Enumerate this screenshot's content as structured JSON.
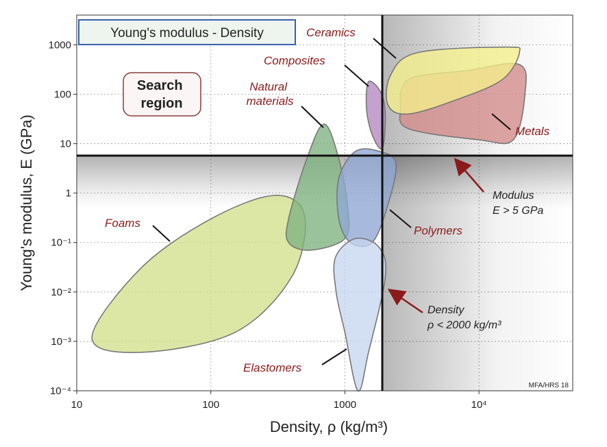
{
  "chart_data": {
    "type": "scatter",
    "title": "Young's modulus - Density",
    "xlabel": "Density, ρ  (kg/m³)",
    "ylabel": "Young's modulus, E  (GPa)",
    "xscale": "log",
    "yscale": "log",
    "xlim": [
      10,
      50000
    ],
    "ylim": [
      0.0001,
      4000
    ],
    "x_ticks": [
      {
        "value": 10,
        "label": "10"
      },
      {
        "value": 100,
        "label": "100"
      },
      {
        "value": 1000,
        "label": "1000"
      },
      {
        "value": 10000,
        "label": "10⁴"
      }
    ],
    "y_ticks": [
      {
        "value": 1000,
        "label": "1000"
      },
      {
        "value": 100,
        "label": "100"
      },
      {
        "value": 10,
        "label": "10"
      },
      {
        "value": 1,
        "label": "1"
      },
      {
        "value": 0.1,
        "label": "10⁻¹"
      },
      {
        "value": 0.01,
        "label": "10⁻²"
      },
      {
        "value": 0.001,
        "label": "10⁻³"
      },
      {
        "value": 0.0001,
        "label": "10⁻⁴"
      }
    ],
    "grid": true,
    "material_classes": [
      {
        "name": "Foams",
        "color": "#d3e08c",
        "pts": [
          [
            13,
            0.0012
          ],
          [
            30,
            0.0006
          ],
          [
            150,
            0.0015
          ],
          [
            400,
            0.02
          ],
          [
            500,
            0.35
          ],
          [
            300,
            0.9
          ],
          [
            100,
            0.3
          ],
          [
            30,
            0.03
          ]
        ]
      },
      {
        "name": "Natural materials",
        "color": "#7fb27f",
        "pts": [
          [
            380,
            0.1
          ],
          [
            550,
            0.07
          ],
          [
            1000,
            0.12
          ],
          [
            1050,
            0.5
          ],
          [
            900,
            5
          ],
          [
            700,
            25
          ],
          [
            520,
            5
          ],
          [
            380,
            0.3
          ]
        ]
      },
      {
        "name": "Polymers",
        "color": "#8ea6d4",
        "pts": [
          [
            900,
            0.3
          ],
          [
            1100,
            0.1
          ],
          [
            1600,
            0.1
          ],
          [
            2100,
            0.6
          ],
          [
            2400,
            4
          ],
          [
            1800,
            7
          ],
          [
            1200,
            7
          ],
          [
            900,
            2
          ]
        ]
      },
      {
        "name": "Elastomers",
        "color": "#c6d6f0",
        "pts": [
          [
            860,
            0.01
          ],
          [
            1000,
            0.0015
          ],
          [
            1250,
            0.0001
          ],
          [
            1500,
            0.0006
          ],
          [
            2000,
            0.02
          ],
          [
            1800,
            0.08
          ],
          [
            1200,
            0.12
          ],
          [
            850,
            0.05
          ]
        ]
      },
      {
        "name": "Composites",
        "color": "#b586c0",
        "pts": [
          [
            1450,
            50
          ],
          [
            1600,
            15
          ],
          [
            1900,
            8
          ],
          [
            2000,
            40
          ],
          [
            1850,
            110
          ],
          [
            1500,
            180
          ]
        ]
      },
      {
        "name": "Metals",
        "color": "#d48a8a",
        "pts": [
          [
            2600,
            50
          ],
          [
            3000,
            20
          ],
          [
            10000,
            12
          ],
          [
            18000,
            12
          ],
          [
            22000,
            100
          ],
          [
            20000,
            400
          ],
          [
            8000,
            300
          ],
          [
            3000,
            200
          ]
        ]
      },
      {
        "name": "Ceramics",
        "color": "#f5f08a",
        "pts": [
          [
            2100,
            60
          ],
          [
            2200,
            250
          ],
          [
            3500,
            700
          ],
          [
            16000,
            900
          ],
          [
            20000,
            700
          ],
          [
            15000,
            200
          ],
          [
            7000,
            80
          ],
          [
            3000,
            40
          ]
        ]
      }
    ],
    "constraints": [
      {
        "type": "horizontal",
        "value": 5,
        "label_lines": [
          "Modulus",
          "E > 5  GPa"
        ]
      },
      {
        "type": "vertical",
        "value": 2000,
        "label_lines": [
          "Density",
          "ρ < 2000 kg/m³"
        ]
      }
    ],
    "search_region_label": [
      "Search",
      "region"
    ],
    "credit": "MFA/HRS 18"
  },
  "colors": {
    "class_label": "#8b1a1a",
    "arrow": "#8b1a1a",
    "title_border": "#3a5fb0",
    "title_bg": "#eef5ee",
    "search_border": "#8b3a3a"
  }
}
